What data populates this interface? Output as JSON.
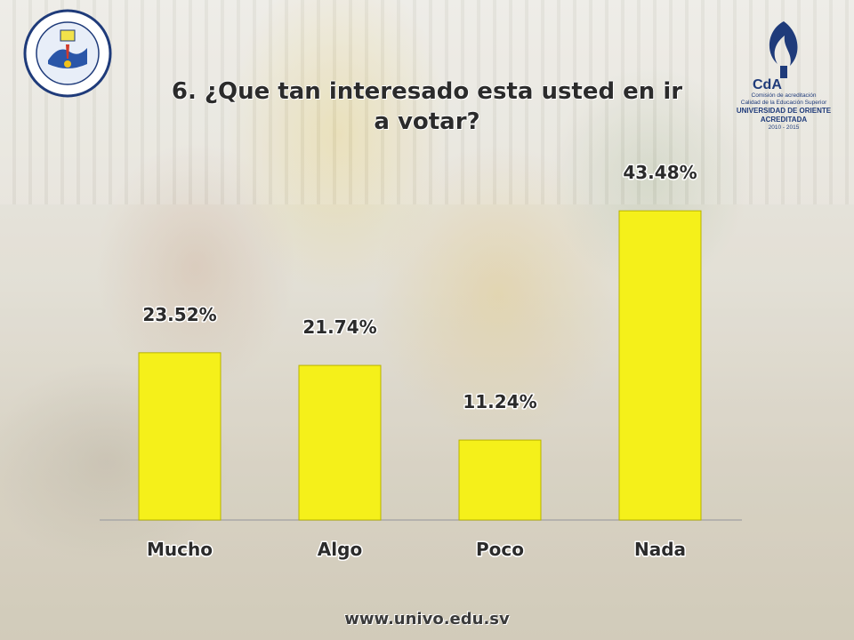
{
  "title": "6. ¿Que tan interesado esta usted en ir a votar?",
  "footer_url": "www.univo.edu.sv",
  "logo_right": {
    "line1": "Comisión de acreditación",
    "line2": "Calidad de la Educación Superior",
    "line3": "UNIVERSIDAD DE ORIENTE",
    "line4": "ACREDITADA",
    "line5": "2010 - 2015"
  },
  "colors": {
    "bar": "#f5f01a",
    "bar_border": "#b8b300",
    "title": "#2b2b2b"
  },
  "chart_data": {
    "type": "bar",
    "title": "6. ¿Que tan interesado esta usted en ir a votar?",
    "categories": [
      "Mucho",
      "Algo",
      "Poco",
      "Nada"
    ],
    "values": [
      23.52,
      21.74,
      11.24,
      43.48
    ],
    "value_labels": [
      "23.52%",
      "21.74%",
      "11.24%",
      "43.48%"
    ],
    "xlabel": "",
    "ylabel": "",
    "ylim": [
      0,
      45
    ],
    "grid": false,
    "legend": "none"
  }
}
